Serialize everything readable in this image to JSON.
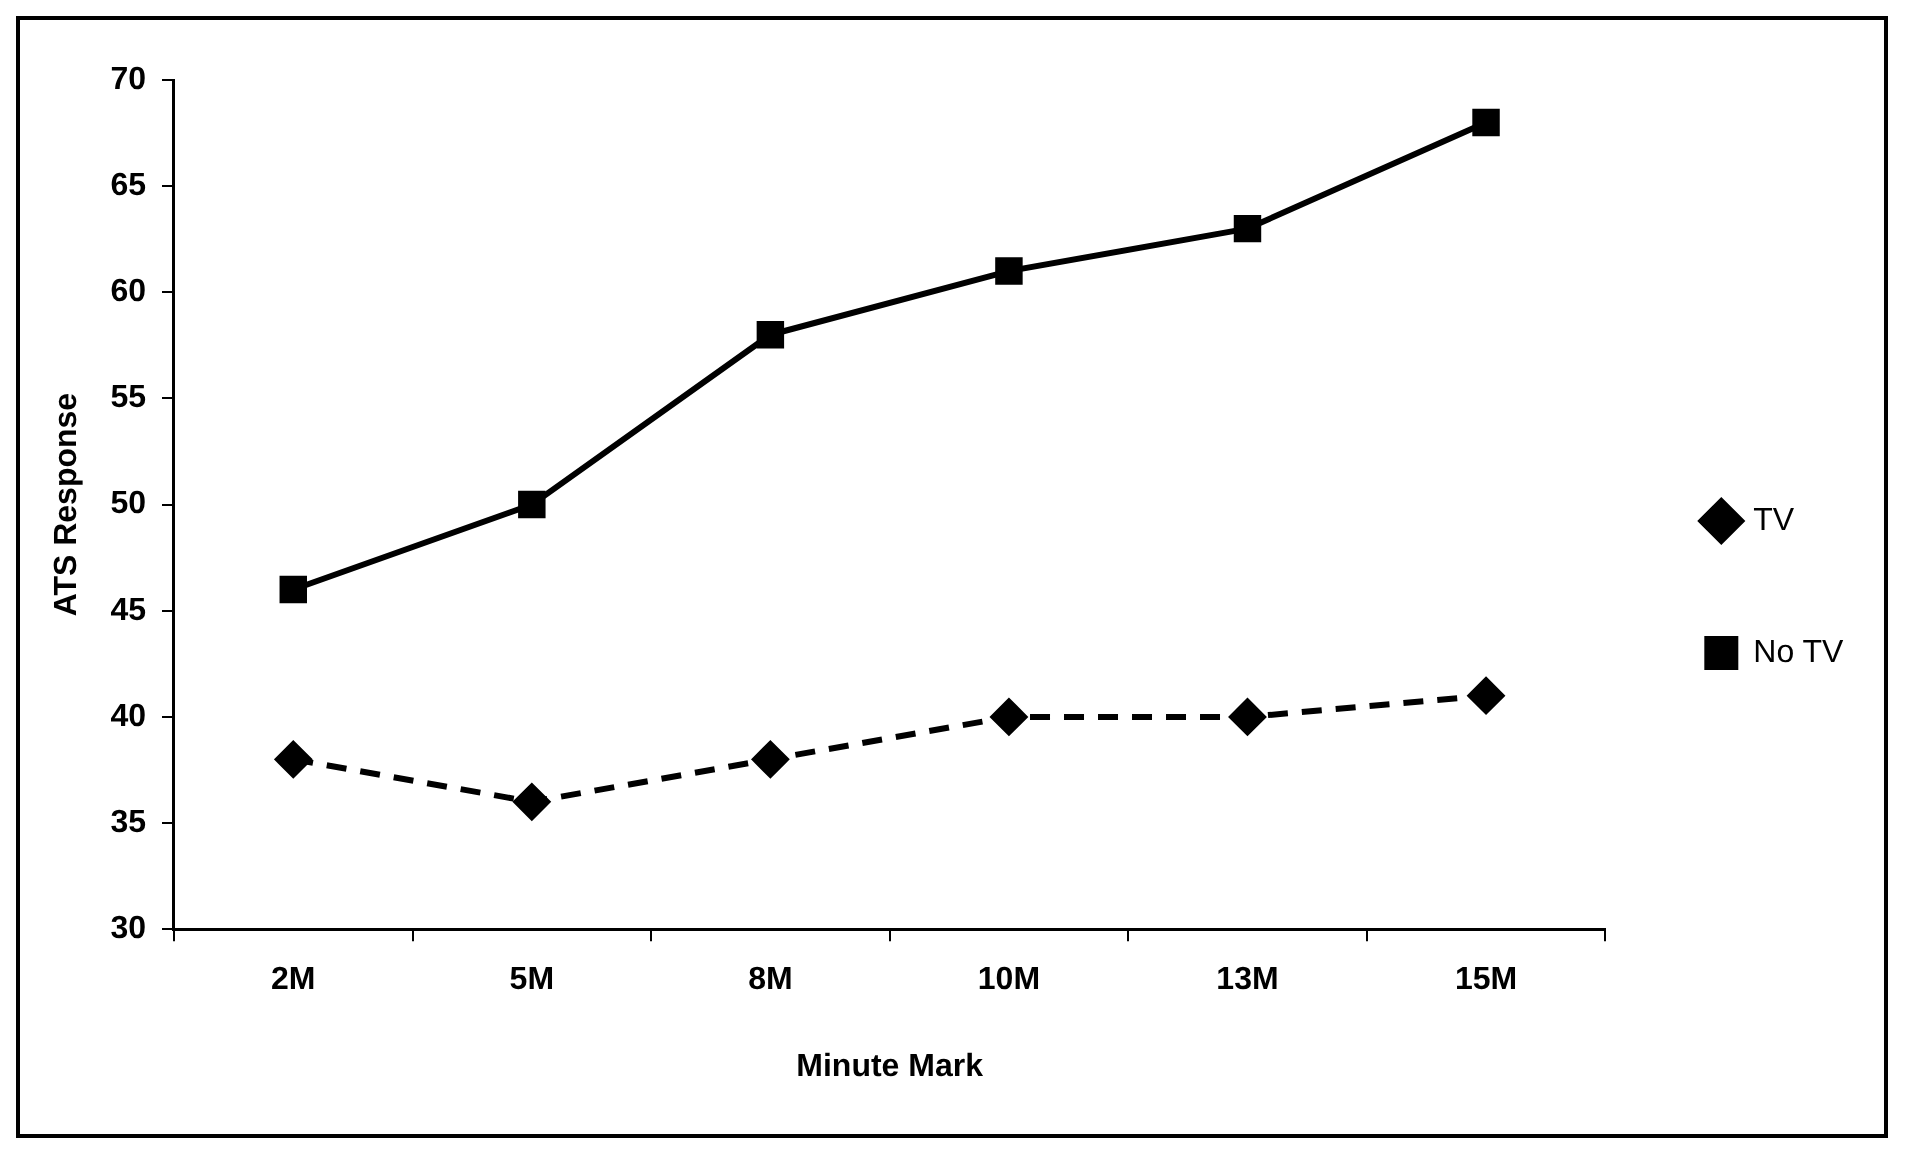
{
  "chart_data": {
    "type": "line",
    "xlabel": "Minute Mark",
    "ylabel": "ATS Response",
    "categories": [
      "2M",
      "5M",
      "8M",
      "10M",
      "13M",
      "15M"
    ],
    "series": [
      {
        "name": "TV",
        "color": "#000000",
        "values": [
          38,
          36,
          38,
          40,
          40,
          41
        ],
        "marker": "diamond",
        "line_style": "dashed"
      },
      {
        "name": "No TV",
        "color": "#000000",
        "values": [
          46,
          50,
          58,
          61,
          63,
          68
        ],
        "marker": "square",
        "line_style": "solid"
      }
    ],
    "ylim": [
      30,
      70
    ],
    "yticks": [
      30,
      35,
      40,
      45,
      50,
      55,
      60,
      65,
      70
    ],
    "grid": false,
    "legend": "right"
  }
}
